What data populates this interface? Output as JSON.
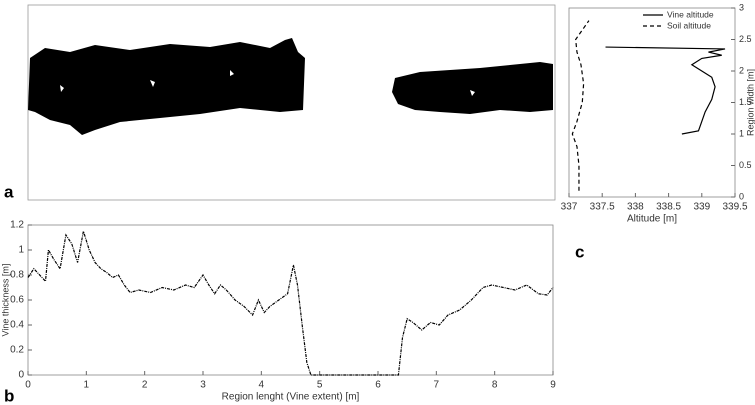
{
  "chart_data": [
    {
      "type": "image",
      "label": "a"
    },
    {
      "type": "line",
      "label": "b",
      "xlabel": "Region lenght (Vine extent) [m]",
      "ylabel": "Vine thickness [m]",
      "x": [
        0,
        0.1,
        0.2,
        0.3,
        0.35,
        0.45,
        0.55,
        0.65,
        0.75,
        0.85,
        0.95,
        1.05,
        1.15,
        1.25,
        1.35,
        1.45,
        1.55,
        1.65,
        1.75,
        1.9,
        2.1,
        2.3,
        2.5,
        2.7,
        2.85,
        3.0,
        3.1,
        3.2,
        3.3,
        3.4,
        3.55,
        3.7,
        3.85,
        3.95,
        4.05,
        4.15,
        4.3,
        4.45,
        4.55,
        4.62,
        4.7,
        4.78,
        4.85,
        5.0,
        5.5,
        6.0,
        6.35,
        6.42,
        6.5,
        6.6,
        6.75,
        6.9,
        7.05,
        7.2,
        7.4,
        7.6,
        7.8,
        7.95,
        8.15,
        8.35,
        8.55,
        8.75,
        8.9,
        9.0
      ],
      "values": [
        0.78,
        0.85,
        0.8,
        0.75,
        1.0,
        0.92,
        0.85,
        1.12,
        1.05,
        0.9,
        1.15,
        1.0,
        0.9,
        0.85,
        0.82,
        0.78,
        0.8,
        0.72,
        0.66,
        0.68,
        0.66,
        0.7,
        0.68,
        0.72,
        0.7,
        0.8,
        0.72,
        0.65,
        0.72,
        0.68,
        0.6,
        0.55,
        0.48,
        0.6,
        0.5,
        0.55,
        0.6,
        0.65,
        0.88,
        0.72,
        0.4,
        0.1,
        0,
        0,
        0,
        0,
        0,
        0.3,
        0.45,
        0.42,
        0.36,
        0.42,
        0.4,
        0.48,
        0.52,
        0.6,
        0.7,
        0.72,
        0.7,
        0.68,
        0.72,
        0.65,
        0.64,
        0.7
      ],
      "color": "#000000",
      "line_style": "dashdot",
      "xlim": [
        0,
        9
      ],
      "xticks": [
        0,
        1,
        2,
        3,
        4,
        5,
        6,
        7,
        8,
        9
      ],
      "ylim": [
        0,
        1.2
      ],
      "yticks": [
        0,
        0.2,
        0.4,
        0.6,
        0.8,
        1,
        1.2
      ]
    },
    {
      "type": "line",
      "label": "c",
      "xlabel": "Altitude [m]",
      "ylabel": "Region width [m]",
      "legend": "top-right",
      "series": [
        {
          "name": "Vine altitude",
          "color": "#000000",
          "line_style": "solid",
          "x": [
            338.7,
            338.95,
            339.0,
            339.05,
            339.15,
            339.2,
            339.15,
            339.0,
            338.85,
            339.0,
            339.3,
            339.1,
            339.35,
            337.55
          ],
          "values": [
            1.0,
            1.05,
            1.2,
            1.35,
            1.55,
            1.75,
            1.9,
            2.0,
            2.1,
            2.2,
            2.25,
            2.3,
            2.35,
            2.38
          ]
        },
        {
          "name": "Soil altitude",
          "color": "#000000",
          "line_style": "dashed",
          "x": [
            337.15,
            337.15,
            337.12,
            337.05,
            337.12,
            337.2,
            337.22,
            337.18,
            337.12,
            337.1,
            337.2,
            337.3
          ],
          "values": [
            0.1,
            0.5,
            0.8,
            1.0,
            1.2,
            1.5,
            1.8,
            2.1,
            2.3,
            2.5,
            2.65,
            2.8
          ]
        }
      ],
      "xlim": [
        337,
        339.5
      ],
      "xticks": [
        337,
        337.5,
        338,
        338.5,
        339,
        339.5
      ],
      "ylim": [
        0,
        3
      ],
      "yticks": [
        0,
        0.5,
        1,
        1.5,
        2,
        2.5,
        3
      ]
    }
  ]
}
